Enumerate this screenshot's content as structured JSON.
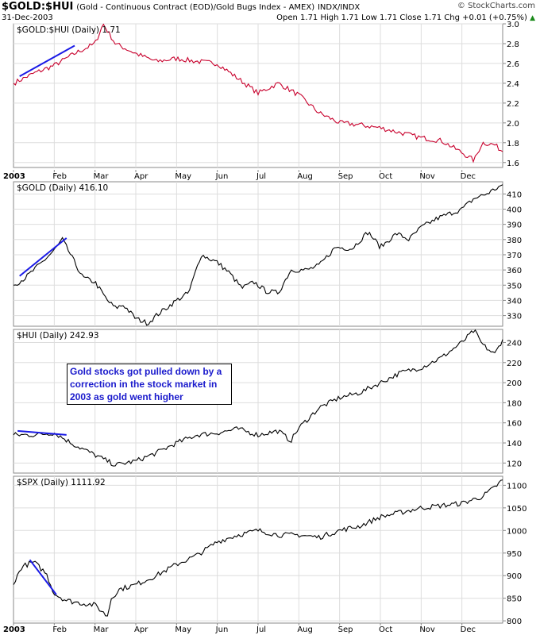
{
  "header": {
    "symbol": "$GOLD:$HUI",
    "description": "(Gold - Continuous Contract (EOD)/Gold Bugs Index - AMEX)",
    "exchange": "INDX/INDX",
    "date": "31-Dec-2003",
    "logo": "© StockCharts.com",
    "ohlc": "Open 1.71 High 1.71 Low 1.71 Close 1.71 Chg +0.01 (+0.75%)"
  },
  "annotation": {
    "lines": [
      "Gold stocks got pulled down by a",
      "correction in the stock market in",
      "2003 as gold went higher"
    ]
  },
  "colors": {
    "ratio_line": "#c8002c",
    "price_line": "#000000",
    "trend_line": "#1a1ae6",
    "grid": "#dddddd",
    "annotation_text": "#1a1acc"
  },
  "chart_data": [
    {
      "type": "line",
      "label": "$GOLD:$HUI (Daily) 1.71",
      "x_tick_labels": [
        "2003",
        "Feb",
        "Mar",
        "Apr",
        "May",
        "Jun",
        "Jul",
        "Aug",
        "Sep",
        "Oct",
        "Nov",
        "Dec"
      ],
      "y_ticks": [
        "3.0",
        "2.8",
        "2.6",
        "2.4",
        "2.2",
        "2.0",
        "1.8",
        "1.6"
      ],
      "ylim": [
        1.55,
        3.0
      ],
      "x_months": [
        0,
        0.5,
        1,
        1.5,
        2,
        2.2,
        2.5,
        3,
        3.5,
        4,
        4.5,
        5,
        5.5,
        6,
        6.5,
        7,
        7.5,
        8,
        8.5,
        9,
        9.5,
        10,
        10.5,
        11,
        11.3,
        11.5,
        11.8,
        12
      ],
      "values": [
        2.4,
        2.5,
        2.58,
        2.7,
        2.8,
        3.0,
        2.8,
        2.7,
        2.62,
        2.65,
        2.62,
        2.6,
        2.45,
        2.3,
        2.4,
        2.28,
        2.1,
        2.0,
        1.98,
        1.95,
        1.9,
        1.85,
        1.82,
        1.7,
        1.62,
        1.8,
        1.78,
        1.71
      ],
      "trend_line": {
        "x": [
          0.15,
          1.5
        ],
        "y": [
          2.47,
          2.78
        ]
      }
    },
    {
      "type": "line",
      "label": "$GOLD (Daily) 416.10",
      "y_ticks": [
        "410",
        "400",
        "390",
        "380",
        "370",
        "360",
        "350",
        "340",
        "330"
      ],
      "ylim": [
        323,
        418
      ],
      "x_months": [
        0,
        0.3,
        0.7,
        1.0,
        1.2,
        1.5,
        1.7,
        2.0,
        2.3,
        2.5,
        2.7,
        3.0,
        3.3,
        3.5,
        4.0,
        4.3,
        4.6,
        5.0,
        5.3,
        5.6,
        5.9,
        6.2,
        6.5,
        6.8,
        7.2,
        7.5,
        7.9,
        8.3,
        8.7,
        9.0,
        9.4,
        9.7,
        10.0,
        10.4,
        10.7,
        11.0,
        11.3,
        11.6,
        12.0
      ],
      "values": [
        350,
        355,
        365,
        373,
        380,
        365,
        355,
        352,
        340,
        335,
        337,
        328,
        325,
        330,
        340,
        345,
        370,
        365,
        358,
        348,
        352,
        346,
        345,
        360,
        360,
        363,
        375,
        374,
        385,
        375,
        384,
        380,
        388,
        394,
        397,
        400,
        407,
        410,
        416
      ],
      "trend_line": {
        "x": [
          0.15,
          1.3
        ],
        "y": [
          356,
          381
        ]
      }
    },
    {
      "type": "line",
      "label": "$HUI (Daily) 242.93",
      "y_ticks": [
        "240",
        "220",
        "200",
        "180",
        "160",
        "140",
        "120"
      ],
      "ylim": [
        110,
        253
      ],
      "x_months": [
        0,
        0.5,
        1.0,
        1.5,
        2.0,
        2.3,
        2.5,
        3.0,
        3.5,
        4.0,
        4.5,
        5.0,
        5.5,
        6.0,
        6.5,
        6.8,
        7.0,
        7.5,
        8.0,
        8.5,
        9.0,
        9.5,
        10.0,
        10.5,
        11.0,
        11.3,
        11.5,
        11.8,
        12.0
      ],
      "values": [
        148,
        148,
        150,
        138,
        128,
        122,
        118,
        122,
        130,
        140,
        148,
        150,
        154,
        148,
        152,
        142,
        155,
        175,
        185,
        190,
        200,
        210,
        215,
        225,
        240,
        252,
        238,
        228,
        243
      ],
      "trend_line": {
        "x": [
          0.1,
          1.3
        ],
        "y": [
          152,
          148
        ]
      }
    },
    {
      "type": "line",
      "label": "$SPX (Daily) 1111.92",
      "y_ticks": [
        "1100",
        "1050",
        "1000",
        "950",
        "900",
        "850",
        "800"
      ],
      "ylim": [
        795,
        1120
      ],
      "x_months": [
        0,
        0.2,
        0.5,
        0.8,
        1.0,
        1.3,
        1.6,
        2.0,
        2.3,
        2.4,
        2.6,
        3.0,
        3.5,
        4.0,
        4.5,
        5.0,
        5.5,
        6.0,
        6.5,
        7.0,
        7.5,
        8.0,
        8.5,
        9.0,
        9.5,
        10.0,
        10.5,
        11.0,
        11.5,
        11.8,
        12.0
      ],
      "values": [
        880,
        920,
        930,
        905,
        860,
        845,
        840,
        835,
        810,
        850,
        870,
        880,
        900,
        925,
        945,
        975,
        990,
        1000,
        990,
        990,
        985,
        1000,
        1010,
        1030,
        1040,
        1050,
        1055,
        1060,
        1075,
        1095,
        1112
      ],
      "trend_line": {
        "x": [
          0.4,
          1.05
        ],
        "y": [
          935,
          858
        ]
      }
    }
  ]
}
